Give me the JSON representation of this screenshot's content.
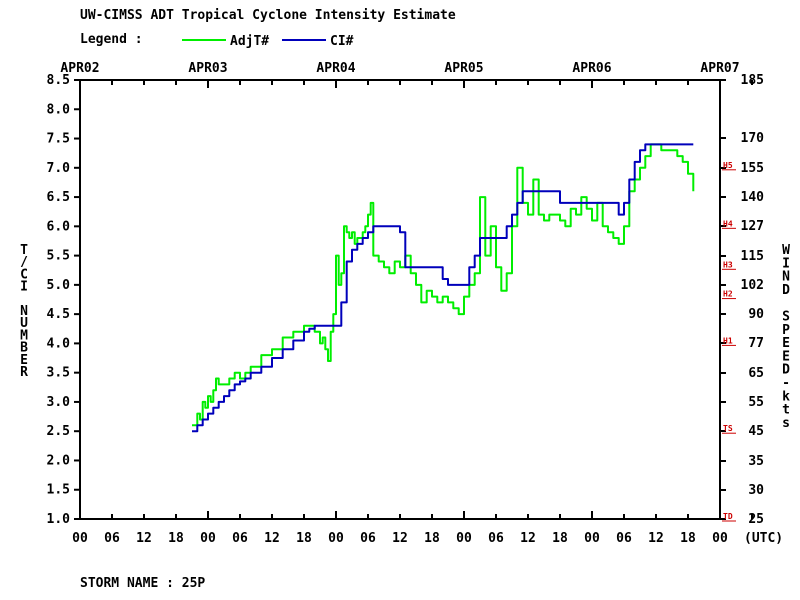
{
  "title": "UW-CIMSS ADT Tropical Cyclone Intensity Estimate",
  "legend_label": "Legend :",
  "footer": {
    "storm_label": "STORM NAME : 25P"
  },
  "chart_data": {
    "type": "line",
    "title": "UW-CIMSS ADT Tropical Cyclone Intensity Estimate",
    "ylabel": "T/CI NUMBER",
    "y2label": "WIND SPEED-kts",
    "xlabel": "(UTC)",
    "ylim": [
      1.0,
      8.5
    ],
    "xlim": [
      0,
      120
    ],
    "x_unit": "hours since APR02 00 UTC",
    "date_labels": [
      "APR02",
      "APR03",
      "APR04",
      "APR05",
      "APR06",
      "APR07"
    ],
    "hour_ticks": [
      "00",
      "06",
      "12",
      "18",
      "00",
      "06",
      "12",
      "18",
      "00",
      "06",
      "12",
      "18",
      "00",
      "06",
      "12",
      "18",
      "00",
      "06",
      "12",
      "18",
      "00",
      "(UTC)"
    ],
    "y_ticks": [
      "1.0",
      "1.5",
      "2.0",
      "2.5",
      "3.0",
      "3.5",
      "4.0",
      "4.5",
      "5.0",
      "5.5",
      "6.0",
      "6.5",
      "7.0",
      "7.5",
      "8.0",
      "8.5"
    ],
    "wind_ticks": [
      "25",
      "30",
      "35",
      "45",
      "55",
      "65",
      "77",
      "90",
      "102",
      "115",
      "127",
      "140",
      "155",
      "170",
      "185"
    ],
    "category_marks": [
      {
        "label": "TD",
        "value": 1.0
      },
      {
        "label": "TS",
        "value": 2.5
      },
      {
        "label": "H1",
        "value": 4.0
      },
      {
        "label": "H2",
        "value": 4.8
      },
      {
        "label": "H3",
        "value": 5.3
      },
      {
        "label": "H4",
        "value": 6.0
      },
      {
        "label": "H5",
        "value": 7.0
      }
    ],
    "legend_position": "top",
    "grid": false,
    "series": [
      {
        "name": "AdjT#",
        "color": "#00ee00",
        "x": [
          21,
          22,
          22.5,
          23,
          23.5,
          24,
          24.5,
          25,
          25.5,
          26,
          26.5,
          27,
          28,
          28.5,
          29,
          30,
          31,
          32,
          34,
          36,
          38,
          40,
          42,
          43,
          44,
          45,
          45.5,
          46,
          46.5,
          47,
          47.5,
          48,
          48.5,
          49,
          49.5,
          50,
          50.5,
          51,
          51.5,
          52,
          52.5,
          53,
          53.5,
          54,
          54.5,
          55,
          56,
          57,
          58,
          59,
          60,
          61,
          62,
          63,
          64,
          65,
          66,
          67,
          68,
          69,
          70,
          71,
          72,
          73,
          74,
          75,
          76,
          77,
          78,
          79,
          80,
          81,
          82,
          83,
          84,
          85,
          86,
          87,
          88,
          89,
          90,
          91,
          92,
          93,
          94,
          95,
          96,
          97,
          98,
          99,
          100,
          101,
          102,
          103,
          104,
          105,
          106,
          107,
          108,
          109,
          110,
          111,
          112,
          113,
          114,
          115
        ],
        "y": [
          2.6,
          2.8,
          2.7,
          3.0,
          2.9,
          3.1,
          3.0,
          3.2,
          3.4,
          3.3,
          3.3,
          3.3,
          3.4,
          3.4,
          3.5,
          3.4,
          3.5,
          3.6,
          3.8,
          3.9,
          4.1,
          4.2,
          4.3,
          4.3,
          4.2,
          4.0,
          4.1,
          3.9,
          3.7,
          4.2,
          4.5,
          5.5,
          5.0,
          5.2,
          6.0,
          5.9,
          5.8,
          5.9,
          5.7,
          5.8,
          5.8,
          5.9,
          6.0,
          6.2,
          6.4,
          5.5,
          5.4,
          5.3,
          5.2,
          5.4,
          5.3,
          5.5,
          5.2,
          5.0,
          4.7,
          4.9,
          4.8,
          4.7,
          4.8,
          4.7,
          4.6,
          4.5,
          4.8,
          5.0,
          5.2,
          6.5,
          5.5,
          6.0,
          5.3,
          4.9,
          5.2,
          6.0,
          7.0,
          6.4,
          6.2,
          6.8,
          6.2,
          6.1,
          6.2,
          6.2,
          6.1,
          6.0,
          6.3,
          6.2,
          6.5,
          6.3,
          6.1,
          6.4,
          6.0,
          5.9,
          5.8,
          5.7,
          6.0,
          6.6,
          6.8,
          7.0,
          7.2,
          7.4,
          7.4,
          7.3,
          7.3,
          7.3,
          7.2,
          7.1,
          6.9,
          6.6
        ]
      },
      {
        "name": "CI#",
        "color": "#0000bb",
        "x": [
          21,
          22,
          23,
          24,
          25,
          26,
          27,
          28,
          29,
          30,
          31,
          32,
          34,
          36,
          38,
          40,
          42,
          43,
          44,
          45,
          46,
          47,
          48,
          49,
          50,
          51,
          52,
          53,
          54,
          55,
          56,
          57,
          58,
          59,
          60,
          61,
          62,
          63,
          64,
          65,
          66,
          67,
          68,
          69,
          70,
          71,
          72,
          73,
          74,
          75,
          76,
          77,
          78,
          79,
          80,
          81,
          82,
          83,
          84,
          85,
          86,
          87,
          88,
          89,
          90,
          91,
          92,
          93,
          94,
          95,
          96,
          97,
          98,
          99,
          100,
          101,
          102,
          103,
          104,
          105,
          106,
          107,
          108,
          109,
          110,
          111,
          112,
          113,
          114,
          115
        ],
        "y": [
          2.5,
          2.6,
          2.7,
          2.8,
          2.9,
          3.0,
          3.1,
          3.2,
          3.3,
          3.35,
          3.4,
          3.5,
          3.6,
          3.75,
          3.9,
          4.05,
          4.2,
          4.25,
          4.3,
          4.3,
          4.3,
          4.3,
          4.3,
          4.7,
          5.4,
          5.6,
          5.7,
          5.8,
          5.9,
          6.0,
          6.0,
          6.0,
          6.0,
          6.0,
          5.9,
          5.3,
          5.3,
          5.3,
          5.3,
          5.3,
          5.3,
          5.3,
          5.1,
          5.0,
          5.0,
          5.0,
          5.0,
          5.3,
          5.5,
          5.8,
          5.8,
          5.8,
          5.8,
          5.8,
          6.0,
          6.2,
          6.4,
          6.6,
          6.6,
          6.6,
          6.6,
          6.6,
          6.6,
          6.6,
          6.4,
          6.4,
          6.4,
          6.4,
          6.4,
          6.4,
          6.4,
          6.4,
          6.4,
          6.4,
          6.4,
          6.2,
          6.4,
          6.8,
          7.1,
          7.3,
          7.4,
          7.4,
          7.4,
          7.4,
          7.4,
          7.4,
          7.4,
          7.4,
          7.4,
          7.4
        ]
      }
    ]
  }
}
